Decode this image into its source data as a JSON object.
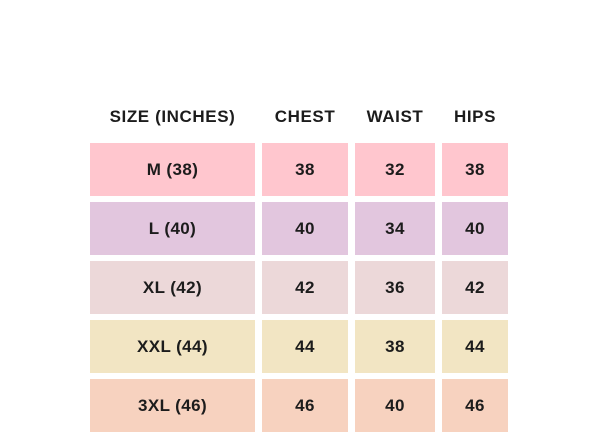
{
  "page": {
    "background": "#ffffff",
    "text_color": "#1c1c1c"
  },
  "size_chart": {
    "headers": {
      "size": "SIZE (INCHES)",
      "chest": "CHEST",
      "waist": "WAIST",
      "hips": "HIPS"
    },
    "rows": [
      {
        "size": "M (38)",
        "chest": "38",
        "waist": "32",
        "hips": "38",
        "row_color": "#ffc6ce"
      },
      {
        "size": "L (40)",
        "chest": "40",
        "waist": "34",
        "hips": "40",
        "row_color": "#e2c6de"
      },
      {
        "size": "XL (42)",
        "chest": "42",
        "waist": "36",
        "hips": "42",
        "row_color": "#ecd8d9"
      },
      {
        "size": "XXL (44)",
        "chest": "44",
        "waist": "38",
        "hips": "44",
        "row_color": "#f2e5c3"
      },
      {
        "size": "3XL (46)",
        "chest": "46",
        "waist": "40",
        "hips": "46",
        "row_color": "#f7d2bf"
      }
    ]
  },
  "chart_data": {
    "type": "table",
    "title": "",
    "columns": [
      "SIZE (INCHES)",
      "CHEST",
      "WAIST",
      "HIPS"
    ],
    "rows": [
      [
        "M (38)",
        38,
        32,
        38
      ],
      [
        "L (40)",
        40,
        34,
        40
      ],
      [
        "XL (42)",
        42,
        36,
        42
      ],
      [
        "XXL (44)",
        44,
        38,
        44
      ],
      [
        "3XL (46)",
        46,
        40,
        46
      ]
    ],
    "row_colors": [
      "#ffc6ce",
      "#e2c6de",
      "#ecd8d9",
      "#f2e5c3",
      "#f7d2bf"
    ],
    "layout": {
      "grid": "off",
      "cell_gap_color": "#ffffff",
      "text_align": "center"
    }
  }
}
